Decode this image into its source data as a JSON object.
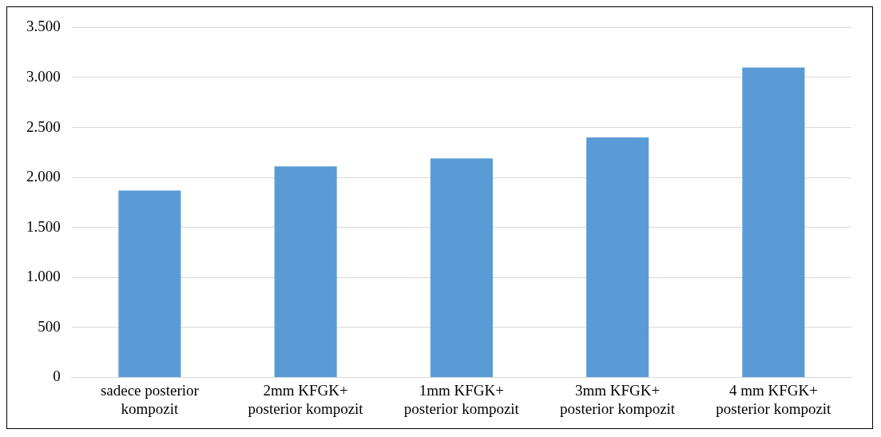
{
  "chart_data": {
    "type": "bar",
    "categories": [
      "sadece posterior kompozit",
      "2mm KFGK+ posterior kompozit",
      "1mm KFGK+ posterior kompozit",
      "3mm KFGK+ posterior kompozit",
      "4 mm KFGK+ posterior kompozit"
    ],
    "values": [
      1870,
      2110,
      2190,
      2400,
      3100
    ],
    "color": "#5b9bd5",
    "ylim": [
      0,
      3500
    ],
    "yticks": [
      {
        "value": 0,
        "label": "0"
      },
      {
        "value": 500,
        "label": "500"
      },
      {
        "value": 1000,
        "label": "1.000"
      },
      {
        "value": 1500,
        "label": "1.500"
      },
      {
        "value": 2000,
        "label": "2.000"
      },
      {
        "value": 2500,
        "label": "2.500"
      },
      {
        "value": 3000,
        "label": "3.000"
      },
      {
        "value": 3500,
        "label": "3.500"
      }
    ],
    "grid": "y",
    "legend": false
  }
}
